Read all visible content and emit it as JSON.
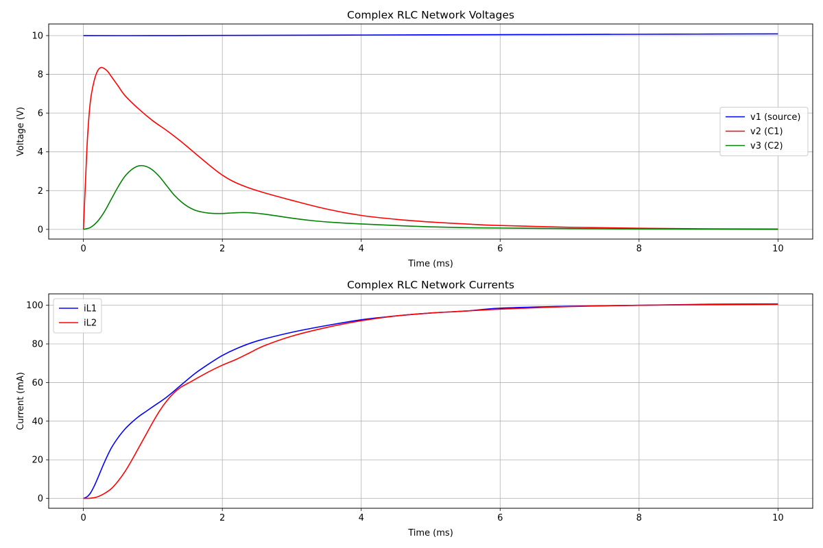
{
  "chart_data": [
    {
      "type": "line",
      "title": "Complex RLC Network Voltages",
      "xlabel": "Time (ms)",
      "ylabel": "Voltage (V)",
      "xlim": [
        -0.5,
        10.5
      ],
      "ylim": [
        -0.5,
        10.6
      ],
      "xticks": [
        0,
        2,
        4,
        6,
        8,
        10
      ],
      "yticks": [
        0,
        2,
        4,
        6,
        8,
        10
      ],
      "grid": true,
      "legend_position": "center-right",
      "series": [
        {
          "name": "v1 (source)",
          "color": "#0000ff",
          "x": [
            0,
            1,
            2,
            3,
            4,
            5,
            6,
            7,
            8,
            9,
            10
          ],
          "y": [
            10.0,
            10.0,
            10.01,
            10.02,
            10.03,
            10.04,
            10.05,
            10.06,
            10.07,
            10.08,
            10.09
          ]
        },
        {
          "name": "v2 (C1)",
          "color": "#ff0000",
          "x": [
            0,
            0.03,
            0.06,
            0.1,
            0.15,
            0.2,
            0.25,
            0.3,
            0.35,
            0.4,
            0.5,
            0.6,
            0.8,
            1.0,
            1.2,
            1.4,
            1.6,
            1.8,
            2.0,
            2.2,
            2.5,
            3.0,
            3.5,
            4.0,
            4.5,
            5.0,
            5.5,
            6.0,
            7.0,
            8.0,
            9.0,
            10.0
          ],
          "y": [
            0,
            2.5,
            4.8,
            6.6,
            7.6,
            8.15,
            8.35,
            8.3,
            8.15,
            7.9,
            7.4,
            6.9,
            6.2,
            5.6,
            5.1,
            4.55,
            3.95,
            3.35,
            2.8,
            2.4,
            2.0,
            1.5,
            1.05,
            0.72,
            0.52,
            0.38,
            0.28,
            0.2,
            0.11,
            0.06,
            0.03,
            0.02
          ]
        },
        {
          "name": "v3 (C2)",
          "color": "#008000",
          "x": [
            0,
            0.1,
            0.2,
            0.3,
            0.4,
            0.5,
            0.6,
            0.7,
            0.8,
            0.9,
            1.0,
            1.1,
            1.2,
            1.3,
            1.4,
            1.5,
            1.6,
            1.7,
            1.8,
            1.9,
            2.0,
            2.1,
            2.2,
            2.3,
            2.4,
            2.5,
            2.7,
            3.0,
            3.3,
            3.6,
            4.0,
            4.5,
            5.0,
            5.5,
            6.0,
            7.0,
            8.0,
            9.0,
            10.0
          ],
          "y": [
            0,
            0.1,
            0.4,
            0.9,
            1.55,
            2.2,
            2.75,
            3.1,
            3.28,
            3.25,
            3.05,
            2.7,
            2.25,
            1.8,
            1.45,
            1.18,
            1.0,
            0.9,
            0.84,
            0.82,
            0.82,
            0.84,
            0.86,
            0.87,
            0.86,
            0.83,
            0.74,
            0.58,
            0.45,
            0.36,
            0.28,
            0.2,
            0.13,
            0.09,
            0.07,
            0.04,
            0.02,
            0.01,
            0.0
          ]
        }
      ]
    },
    {
      "type": "line",
      "title": "Complex RLC Network Currents",
      "xlabel": "Time (ms)",
      "ylabel": "Current (mA)",
      "xlim": [
        -0.5,
        10.5
      ],
      "ylim": [
        -5.1,
        105.9
      ],
      "xticks": [
        0,
        2,
        4,
        6,
        8,
        10
      ],
      "yticks": [
        0,
        20,
        40,
        60,
        80,
        100
      ],
      "grid": true,
      "legend_position": "upper-left",
      "series": [
        {
          "name": "iL1",
          "color": "#0000ff",
          "x": [
            0,
            0.05,
            0.1,
            0.15,
            0.2,
            0.3,
            0.4,
            0.5,
            0.6,
            0.7,
            0.8,
            0.9,
            1.0,
            1.2,
            1.4,
            1.6,
            1.8,
            2.0,
            2.2,
            2.5,
            3.0,
            3.5,
            4.0,
            4.5,
            5.0,
            5.5,
            6.0,
            7.0,
            8.0,
            9.0,
            10.0
          ],
          "y": [
            0,
            0.8,
            2.7,
            6.0,
            10.0,
            18.5,
            26.0,
            31.5,
            36.0,
            39.5,
            42.5,
            45.0,
            47.5,
            52.5,
            58.5,
            64.5,
            69.5,
            74.0,
            77.5,
            81.5,
            86.0,
            89.5,
            92.5,
            94.5,
            96.0,
            97.0,
            98.5,
            99.5,
            100.0,
            100.5,
            100.7
          ]
        },
        {
          "name": "iL2",
          "color": "#ff0000",
          "x": [
            0,
            0.1,
            0.2,
            0.3,
            0.4,
            0.5,
            0.6,
            0.7,
            0.8,
            0.9,
            1.0,
            1.1,
            1.2,
            1.3,
            1.4,
            1.5,
            1.6,
            1.8,
            2.0,
            2.2,
            2.4,
            2.6,
            3.0,
            3.5,
            4.0,
            4.5,
            5.0,
            5.5,
            6.0,
            7.0,
            8.0,
            9.0,
            10.0
          ],
          "y": [
            0,
            0.1,
            0.8,
            2.5,
            5.0,
            9.0,
            14.0,
            20.0,
            26.5,
            33.0,
            39.5,
            45.5,
            50.5,
            54.5,
            57.5,
            59.5,
            61.5,
            65.5,
            69.0,
            72.0,
            75.5,
            79.0,
            84.0,
            88.5,
            92.0,
            94.5,
            96.0,
            97.0,
            98.0,
            99.3,
            100.0,
            100.3,
            100.5
          ]
        }
      ]
    }
  ]
}
